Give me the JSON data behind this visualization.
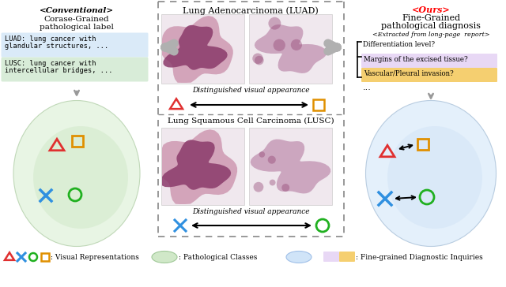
{
  "fig_width": 6.4,
  "fig_height": 3.64,
  "bg_color": "#ffffff",
  "conventional_title": "<Conventional>",
  "conventional_sub1": "Corase-Grained",
  "conventional_sub2": "pathological label",
  "luad_text1": "LUAD: lung cancer with",
  "luad_text2": "glandular structures, ...",
  "lusc_text1": "LUSC: lung cancer with",
  "lusc_text2": "intercellular bridges, ...",
  "luad_bg": "#daeaf8",
  "lusc_bg": "#d8ecd8",
  "ours_title": "<Ours>",
  "ours_sub1": "Fine-Grained",
  "ours_sub2": "pathological diagnosis",
  "ours_italic": "<Extracted from long-page  report>",
  "q1": "Differentiation level?",
  "q2": "Margins of the excised tissue?",
  "q3": "Vascular/Pleural invasion?",
  "q2_bg": "#e8d8f5",
  "q3_bg": "#f5cf70",
  "q_dots": "...",
  "center_luad_title": "Lung Adenocarcinoma (LUAD)",
  "center_lusc_title": "Lung Squamous Cell Carcinoma (LUSC)",
  "dist_label": "Distinguished visual appearance",
  "left_ellipse_color_top": "#e8f5e8",
  "left_ellipse_color_bottom": "#c8e6c0",
  "right_ellipse_color": "#ddeeff",
  "triangle_color": "#e03030",
  "square_color": "#e09000",
  "cross_color": "#3090e0",
  "circle_color": "#20b020",
  "arrow_color": "#555555",
  "dashed_border_color": "#888888",
  "big_arrow_color": "#b0b0b0"
}
